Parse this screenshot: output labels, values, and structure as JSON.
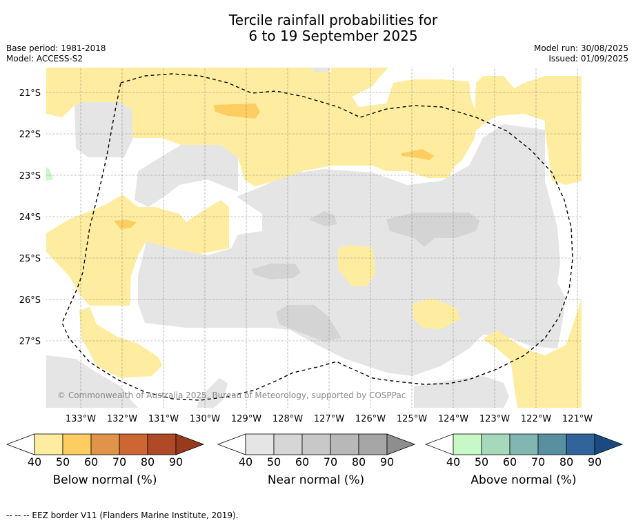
{
  "header": {
    "title_line1": "Tercile rainfall probabilities for",
    "title_line2": "6 to 19 September 2025",
    "base_period": "Base period: 1981-2018",
    "model": "Model: ACCESS-S2",
    "model_run": "Model run: 30/08/2025",
    "issued": "Issued: 01/09/2025"
  },
  "map": {
    "lat_labels": [
      "21°S",
      "22°S",
      "23°S",
      "24°S",
      "25°S",
      "26°S",
      "27°S"
    ],
    "lon_labels": [
      "133°W",
      "132°W",
      "131°W",
      "130°W",
      "129°W",
      "128°W",
      "127°W",
      "126°W",
      "125°W",
      "124°W",
      "123°W",
      "122°W",
      "121°W"
    ],
    "copyright": "© Commonwealth of Australia 2025, Bureau of Meteorology, supported by COSPPac",
    "colors": {
      "below_40": "#feeda0",
      "below_50": "#fdcd62",
      "near_40": "#e5e5e5",
      "near_50": "#d4d4d4",
      "above_40": "#c8f8c8"
    }
  },
  "colorbars": [
    {
      "label": "Below normal (%)",
      "ticks": [
        "40",
        "50",
        "60",
        "70",
        "80",
        "90"
      ],
      "colors": [
        "#feeda0",
        "#fdcd62",
        "#e0944a",
        "#cc6633",
        "#b04a26",
        "#983a1e"
      ]
    },
    {
      "label": "Near normal (%)",
      "ticks": [
        "40",
        "50",
        "60",
        "70",
        "80",
        "90"
      ],
      "colors": [
        "#e5e5e5",
        "#d6d6d6",
        "#c8c8c8",
        "#b8b8b8",
        "#a6a6a6",
        "#8e8e8e"
      ]
    },
    {
      "label": "Above normal (%)",
      "ticks": [
        "40",
        "50",
        "60",
        "70",
        "80",
        "90"
      ],
      "colors": [
        "#c8f8c8",
        "#a6d8bc",
        "#82b6b2",
        "#5890a0",
        "#30649a",
        "#1a4a80"
      ]
    }
  ],
  "footer": {
    "legend_text": "--  --  -- EEZ border V11 (Flanders Marine Institute, 2019)."
  }
}
